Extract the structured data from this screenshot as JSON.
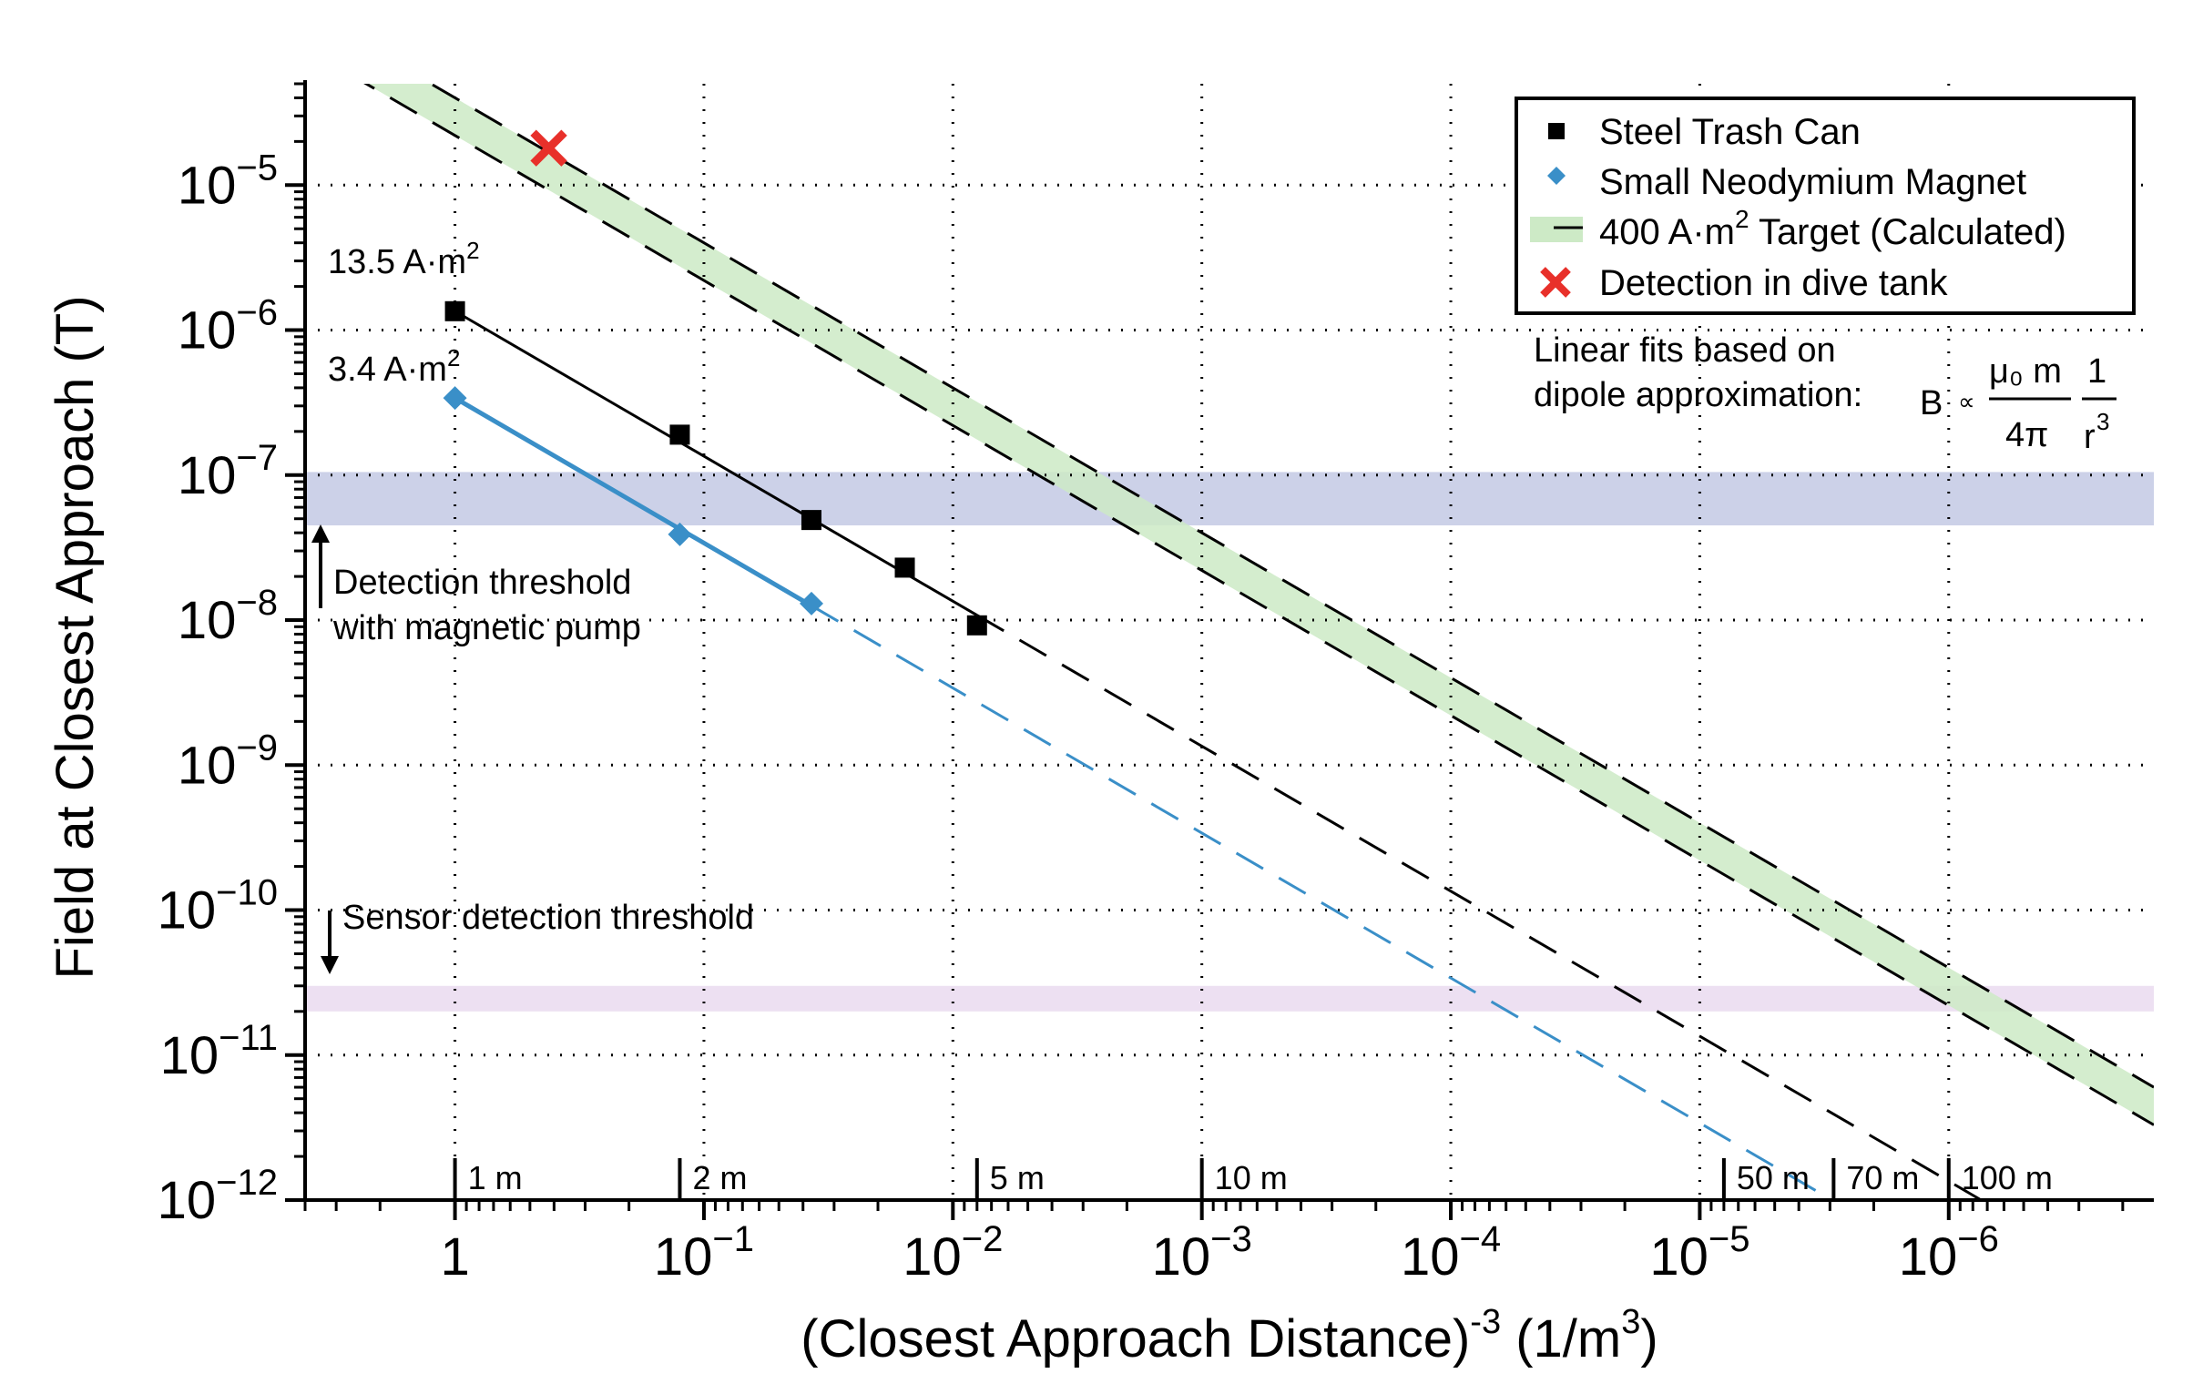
{
  "chart_data": {
    "type": "scatter",
    "x_scale": "log",
    "y_scale": "log",
    "x_reversed": true,
    "xlim": [
      4.0,
      1.5e-07
    ],
    "ylim": [
      1e-12,
      5e-05
    ],
    "xlabel": {
      "main": "(Closest Approach Distance)",
      "sup1": "-3",
      "mid": " (1/m",
      "sup2": "3",
      "end": ")"
    },
    "ylabel": "Field at Closest Approach (T)",
    "x_ticks": [
      {
        "value": 1,
        "label": "1",
        "exp": ""
      },
      {
        "value": 0.1,
        "label": "10",
        "exp": "−1"
      },
      {
        "value": 0.01,
        "label": "10",
        "exp": "−2"
      },
      {
        "value": 0.001,
        "label": "10",
        "exp": "−3"
      },
      {
        "value": 0.0001,
        "label": "10",
        "exp": "−4"
      },
      {
        "value": 1e-05,
        "label": "10",
        "exp": "−5"
      },
      {
        "value": 1e-06,
        "label": "10",
        "exp": "−6"
      }
    ],
    "y_ticks": [
      {
        "value": 1e-05,
        "label": "10",
        "exp": "−5"
      },
      {
        "value": 1e-06,
        "label": "10",
        "exp": "−6"
      },
      {
        "value": 1e-07,
        "label": "10",
        "exp": "−7"
      },
      {
        "value": 1e-08,
        "label": "10",
        "exp": "−8"
      },
      {
        "value": 1e-09,
        "label": "10",
        "exp": "−9"
      },
      {
        "value": 1e-10,
        "label": "10",
        "exp": "−10"
      },
      {
        "value": 1e-11,
        "label": "10",
        "exp": "−11"
      },
      {
        "value": 1e-12,
        "label": "10",
        "exp": "−12"
      }
    ],
    "series": [
      {
        "name": "Steel Trash Can",
        "marker": "square",
        "color": "#000000",
        "x": [
          1,
          0.125,
          0.037,
          0.0156,
          0.008
        ],
        "y": [
          1.35e-06,
          1.9e-07,
          4.9e-08,
          2.3e-08,
          9.2e-09
        ]
      },
      {
        "name": "Small Neodymium Magnet",
        "marker": "diamond",
        "color": "#3a8fc8",
        "x": [
          1,
          0.125,
          0.037
        ],
        "y": [
          3.4e-07,
          3.9e-08,
          1.3e-08
        ]
      },
      {
        "name": "Detection in dive tank",
        "marker": "x",
        "color": "#e8302a",
        "x": [
          0.42
        ],
        "y": [
          1.8e-05
        ]
      }
    ],
    "fits": [
      {
        "name": "13.5 fit",
        "color": "#000000",
        "coef": 1.35e-06,
        "solid_range": [
          1,
          0.008
        ],
        "dashed_range": [
          0.008,
          1.5e-07
        ]
      },
      {
        "name": "3.4 fit",
        "color": "#3a8fc8",
        "coef": 3.4e-07,
        "solid_range": [
          1,
          0.037
        ],
        "dashed_range": [
          0.037,
          1.5e-07
        ]
      },
      {
        "name": "400 target",
        "color": "#000000",
        "coef": 4e-05,
        "band_low": 2.2e-05,
        "band_color": "#cdeac6",
        "range": [
          4.0,
          1.5e-07
        ]
      }
    ],
    "threshold_bands": [
      {
        "name": "magnetic-pump",
        "y_low": 4.5e-08,
        "y_high": 1.05e-07,
        "color": "#c3c9e4"
      },
      {
        "name": "sensor",
        "y_low": 2e-11,
        "y_high": 3e-11,
        "color": "#eadaf0"
      }
    ],
    "distance_markers": [
      {
        "label": "1 m",
        "value": 1
      },
      {
        "label": "2 m",
        "value": 0.125
      },
      {
        "label": "5 m",
        "value": 0.008
      },
      {
        "label": "10 m",
        "value": 0.001
      },
      {
        "label": "50 m",
        "value": 8e-06
      },
      {
        "label": "70 m",
        "value": 2.9e-06
      },
      {
        "label": "100 m",
        "value": 1e-06
      }
    ],
    "legend": {
      "position": "top-right",
      "entries": [
        {
          "label": "Steel Trash Can",
          "marker": "square"
        },
        {
          "label": "Small Neodymium Magnet",
          "marker": "diamond"
        },
        {
          "label_pre": "400 A·m",
          "label_sup": "2",
          "label_post": " Target (Calculated)",
          "marker": "band"
        },
        {
          "label": "Detection in dive tank",
          "marker": "x"
        }
      ]
    },
    "annotations": {
      "moment_high": {
        "text": "13.5 A·m",
        "sup": "2"
      },
      "moment_low": {
        "text": "3.4 A·m",
        "sup": "2"
      },
      "pump_line1": "Detection threshold",
      "pump_line2": "with magnetic pump",
      "sensor": "Sensor detection threshold",
      "fit_line1": "Linear fits based on",
      "fit_line2": "dipole approximation:",
      "formula": {
        "B": "B",
        "prop": "∝",
        "num": "μ₀ m",
        "den": "4π",
        "one": "1",
        "r": "r",
        "r_exp": "3"
      }
    }
  }
}
